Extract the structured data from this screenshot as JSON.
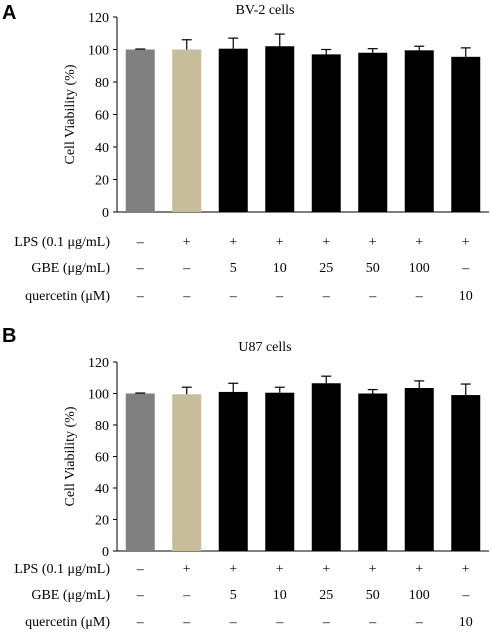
{
  "chart_data": [
    {
      "type": "bar",
      "panel": "A",
      "title": "BV-2 cells",
      "ylabel": "Cell Viability (%)",
      "ylim": [
        0,
        120
      ],
      "yticks": [
        "0",
        "20",
        "40",
        "60",
        "80",
        "100",
        "120"
      ],
      "values": [
        100,
        100,
        100.5,
        102,
        97,
        98,
        99.5,
        95.5
      ],
      "errors": [
        0.3,
        6,
        6.5,
        7.5,
        3,
        2.5,
        2.5,
        5.5
      ],
      "bar_colors": [
        "#808080",
        "#c7bd9a",
        "#000000",
        "#000000",
        "#000000",
        "#000000",
        "#000000",
        "#000000"
      ],
      "rows": [
        {
          "label": "LPS (0.1 μg/mL)",
          "cells": [
            "–",
            "+",
            "+",
            "+",
            "+",
            "+",
            "+",
            "+"
          ]
        },
        {
          "label": "GBE (μg/mL)",
          "cells": [
            "–",
            "–",
            "5",
            "10",
            "25",
            "50",
            "100",
            "–"
          ]
        },
        {
          "label": "quercetin (μM)",
          "cells": [
            "–",
            "–",
            "–",
            "–",
            "–",
            "–",
            "–",
            "10"
          ]
        }
      ]
    },
    {
      "type": "bar",
      "panel": "B",
      "title": "U87 cells",
      "ylabel": "Cell Viability (%)",
      "ylim": [
        0,
        120
      ],
      "yticks": [
        "0",
        "20",
        "40",
        "60",
        "80",
        "100",
        "120"
      ],
      "values": [
        100,
        99.5,
        101,
        100.5,
        106.5,
        100,
        103.5,
        99
      ],
      "errors": [
        0.3,
        4.5,
        5.5,
        3.5,
        4.5,
        2.5,
        4.5,
        7
      ],
      "bar_colors": [
        "#808080",
        "#c7bd9a",
        "#000000",
        "#000000",
        "#000000",
        "#000000",
        "#000000",
        "#000000"
      ],
      "rows": [
        {
          "label": "LPS (0.1 μg/mL)",
          "cells": [
            "–",
            "+",
            "+",
            "+",
            "+",
            "+",
            "+",
            "+"
          ]
        },
        {
          "label": "GBE (μg/mL)",
          "cells": [
            "–",
            "–",
            "5",
            "10",
            "25",
            "50",
            "100",
            "–"
          ]
        },
        {
          "label": "quercetin (μM)",
          "cells": [
            "–",
            "–",
            "–",
            "–",
            "–",
            "–",
            "–",
            "10"
          ]
        }
      ]
    }
  ]
}
